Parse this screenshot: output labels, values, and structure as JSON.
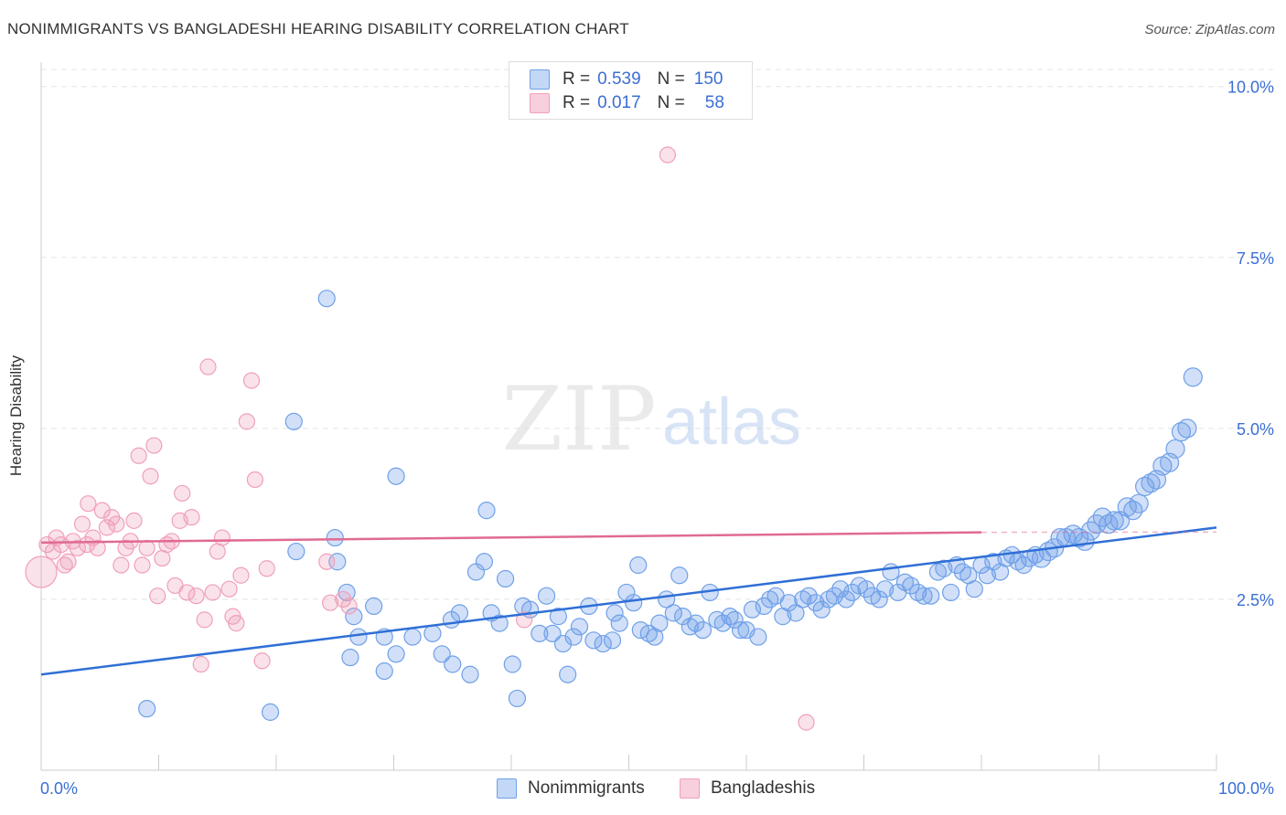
{
  "header": {
    "title": "NONIMMIGRANTS VS BANGLADESHI HEARING DISABILITY CORRELATION CHART",
    "source": "Source: ZipAtlas.com"
  },
  "watermark": {
    "zip": "ZIP",
    "atlas": "atlas"
  },
  "legend": {
    "rows": [
      {
        "r_label": "R =",
        "r_value": "0.539",
        "n_label": "N =",
        "n_value": "150",
        "color": "#6fa0e8"
      },
      {
        "r_label": "R =",
        "r_value": "0.017",
        "n_label": "N =",
        "n_value": "58",
        "color": "#f0a0b8"
      }
    ]
  },
  "bottom_legend": [
    {
      "label": "Nonimmigrants",
      "color": "#6fa0e8"
    },
    {
      "label": "Bangladeshis",
      "color": "#f0a0b8"
    }
  ],
  "chart_data": {
    "type": "scatter",
    "title": "NONIMMIGRANTS VS BANGLADESHI HEARING DISABILITY CORRELATION CHART",
    "ylabel": "Hearing Disability",
    "xlabel": "",
    "xlim": [
      0,
      100
    ],
    "ylim": [
      0,
      10.25
    ],
    "x_tick_labels": [
      "0.0%",
      "100.0%"
    ],
    "y_ticks": [
      2.5,
      5.0,
      7.5,
      10.0
    ],
    "y_tick_labels": [
      "2.5%",
      "5.0%",
      "7.5%",
      "10.0%"
    ],
    "grid": "horizontal dashed",
    "legend_placement": "top-center",
    "series": [
      {
        "name": "Nonimmigrants",
        "color": "#6fa0e8",
        "line_color": "#2f6fd6",
        "trend": {
          "x": [
            0,
            100
          ],
          "y": [
            1.4,
            3.55
          ]
        },
        "points": [
          [
            9,
            0.9
          ],
          [
            19.5,
            0.85
          ],
          [
            24.3,
            6.9
          ],
          [
            21.5,
            5.1
          ],
          [
            30.2,
            4.3
          ],
          [
            37.9,
            3.8
          ],
          [
            25,
            3.4
          ],
          [
            21.7,
            3.2
          ],
          [
            25.2,
            3.05
          ],
          [
            26,
            2.6
          ],
          [
            26.6,
            2.25
          ],
          [
            28.3,
            2.4
          ],
          [
            26.3,
            1.65
          ],
          [
            27,
            1.95
          ],
          [
            29.2,
            1.95
          ],
          [
            30.2,
            1.7
          ],
          [
            29.2,
            1.45
          ],
          [
            31.6,
            1.95
          ],
          [
            33.3,
            2.0
          ],
          [
            34.1,
            1.7
          ],
          [
            35,
            1.55
          ],
          [
            36.5,
            1.4
          ],
          [
            34.9,
            2.2
          ],
          [
            35.6,
            2.3
          ],
          [
            37,
            2.9
          ],
          [
            37.7,
            3.05
          ],
          [
            38.3,
            2.3
          ],
          [
            39,
            2.15
          ],
          [
            39.5,
            2.8
          ],
          [
            40.1,
            1.55
          ],
          [
            40.5,
            1.05
          ],
          [
            41,
            2.4
          ],
          [
            41.6,
            2.35
          ],
          [
            42.4,
            2.0
          ],
          [
            43,
            2.55
          ],
          [
            43.5,
            2.0
          ],
          [
            44,
            2.25
          ],
          [
            44.4,
            1.85
          ],
          [
            44.8,
            1.4
          ],
          [
            45.3,
            1.95
          ],
          [
            45.8,
            2.1
          ],
          [
            46.6,
            2.4
          ],
          [
            47,
            1.9
          ],
          [
            47.8,
            1.85
          ],
          [
            48.6,
            1.9
          ],
          [
            48.8,
            2.3
          ],
          [
            49.2,
            2.15
          ],
          [
            49.8,
            2.6
          ],
          [
            50.4,
            2.45
          ],
          [
            50.8,
            3.0
          ],
          [
            51,
            2.05
          ],
          [
            51.7,
            2.0
          ],
          [
            52.2,
            1.95
          ],
          [
            52.6,
            2.15
          ],
          [
            53.2,
            2.5
          ],
          [
            53.8,
            2.3
          ],
          [
            54.3,
            2.85
          ],
          [
            54.6,
            2.25
          ],
          [
            55.2,
            2.1
          ],
          [
            55.7,
            2.15
          ],
          [
            56.3,
            2.05
          ],
          [
            56.9,
            2.6
          ],
          [
            57.5,
            2.2
          ],
          [
            58,
            2.15
          ],
          [
            58.6,
            2.25
          ],
          [
            59,
            2.2
          ],
          [
            59.5,
            2.05
          ],
          [
            60,
            2.05
          ],
          [
            60.5,
            2.35
          ],
          [
            61,
            1.95
          ],
          [
            61.5,
            2.4
          ],
          [
            62,
            2.5
          ],
          [
            62.5,
            2.55
          ],
          [
            63.1,
            2.25
          ],
          [
            63.6,
            2.45
          ],
          [
            64.2,
            2.3
          ],
          [
            64.8,
            2.5
          ],
          [
            65.3,
            2.55
          ],
          [
            65.9,
            2.45
          ],
          [
            66.4,
            2.35
          ],
          [
            67,
            2.5
          ],
          [
            67.5,
            2.55
          ],
          [
            68,
            2.65
          ],
          [
            68.5,
            2.5
          ],
          [
            69,
            2.6
          ],
          [
            69.6,
            2.7
          ],
          [
            70.2,
            2.65
          ],
          [
            70.7,
            2.55
          ],
          [
            71.3,
            2.5
          ],
          [
            71.8,
            2.65
          ],
          [
            72.3,
            2.9
          ],
          [
            72.9,
            2.6
          ],
          [
            73.5,
            2.75
          ],
          [
            74,
            2.7
          ],
          [
            74.6,
            2.6
          ],
          [
            75.1,
            2.55
          ],
          [
            75.7,
            2.55
          ],
          [
            76.3,
            2.9
          ],
          [
            76.8,
            2.95
          ],
          [
            77.4,
            2.6
          ],
          [
            77.9,
            3.0
          ],
          [
            78.4,
            2.9
          ],
          [
            78.9,
            2.85
          ],
          [
            79.4,
            2.65
          ],
          [
            80,
            3.0
          ],
          [
            80.5,
            2.85
          ],
          [
            81,
            3.05
          ],
          [
            81.6,
            2.9
          ],
          [
            82.1,
            3.1
          ],
          [
            82.6,
            3.15
          ],
          [
            83.1,
            3.05
          ],
          [
            83.6,
            3.0
          ],
          [
            84.1,
            3.1
          ],
          [
            84.6,
            3.15
          ],
          [
            85.1,
            3.1
          ],
          [
            85.7,
            3.2
          ],
          [
            86.2,
            3.25
          ],
          [
            86.7,
            3.4
          ],
          [
            87.2,
            3.4
          ],
          [
            87.8,
            3.45
          ],
          [
            88.3,
            3.4
          ],
          [
            88.8,
            3.35
          ],
          [
            89.3,
            3.5
          ],
          [
            89.8,
            3.6
          ],
          [
            90.3,
            3.7
          ],
          [
            90.8,
            3.6
          ],
          [
            91.3,
            3.65
          ],
          [
            91.8,
            3.65
          ],
          [
            92.4,
            3.85
          ],
          [
            92.9,
            3.8
          ],
          [
            93.4,
            3.9
          ],
          [
            93.9,
            4.15
          ],
          [
            94.4,
            4.2
          ],
          [
            94.9,
            4.25
          ],
          [
            95.4,
            4.45
          ],
          [
            96,
            4.5
          ],
          [
            96.5,
            4.7
          ],
          [
            97,
            4.95
          ],
          [
            97.5,
            5.0
          ],
          [
            98,
            5.75
          ]
        ]
      },
      {
        "name": "Bangladeshis",
        "color": "#f0a0b8",
        "line_color": "#e06a92",
        "trend": {
          "x": [
            0,
            80
          ],
          "y": [
            3.33,
            3.48
          ]
        },
        "points": [
          [
            0,
            2.9
          ],
          [
            0.5,
            3.3
          ],
          [
            1,
            3.2
          ],
          [
            1.3,
            3.4
          ],
          [
            1.7,
            3.3
          ],
          [
            2,
            3.0
          ],
          [
            2.3,
            3.05
          ],
          [
            2.7,
            3.35
          ],
          [
            3.1,
            3.25
          ],
          [
            3.5,
            3.6
          ],
          [
            3.9,
            3.3
          ],
          [
            4,
            3.9
          ],
          [
            4.4,
            3.4
          ],
          [
            4.8,
            3.25
          ],
          [
            5.2,
            3.8
          ],
          [
            5.6,
            3.55
          ],
          [
            6,
            3.7
          ],
          [
            6.4,
            3.6
          ],
          [
            6.8,
            3.0
          ],
          [
            7.2,
            3.25
          ],
          [
            7.6,
            3.35
          ],
          [
            7.9,
            3.65
          ],
          [
            8.3,
            4.6
          ],
          [
            8.6,
            3.0
          ],
          [
            9,
            3.25
          ],
          [
            9.3,
            4.3
          ],
          [
            9.6,
            4.75
          ],
          [
            9.9,
            2.55
          ],
          [
            10.3,
            3.1
          ],
          [
            10.7,
            3.3
          ],
          [
            11.1,
            3.35
          ],
          [
            11.4,
            2.7
          ],
          [
            11.8,
            3.65
          ],
          [
            12,
            4.05
          ],
          [
            12.4,
            2.6
          ],
          [
            12.8,
            3.7
          ],
          [
            13.2,
            2.55
          ],
          [
            13.6,
            1.55
          ],
          [
            13.9,
            2.2
          ],
          [
            14.2,
            5.9
          ],
          [
            14.6,
            2.6
          ],
          [
            15,
            3.2
          ],
          [
            15.4,
            3.4
          ],
          [
            16,
            2.65
          ],
          [
            16.3,
            2.25
          ],
          [
            16.6,
            2.15
          ],
          [
            17,
            2.85
          ],
          [
            17.5,
            5.1
          ],
          [
            18.2,
            4.25
          ],
          [
            17.9,
            5.7
          ],
          [
            18.8,
            1.6
          ],
          [
            19.2,
            2.95
          ],
          [
            24.3,
            3.05
          ],
          [
            24.6,
            2.45
          ],
          [
            25.7,
            2.5
          ],
          [
            26.2,
            2.4
          ],
          [
            41.1,
            2.2
          ],
          [
            53.3,
            9.0
          ],
          [
            65.1,
            0.7
          ]
        ]
      }
    ]
  }
}
